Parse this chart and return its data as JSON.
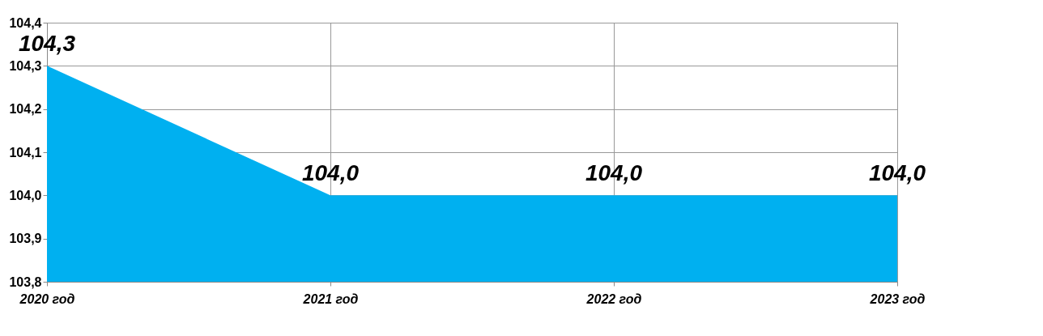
{
  "chart_data": {
    "type": "area",
    "categories": [
      "2020 год",
      "2021 год",
      "2022 год",
      "2023 год"
    ],
    "series": [
      {
        "color": "#00b0f0",
        "values": [
          104.3,
          104.0,
          104.0,
          104.0
        ],
        "value_labels": [
          "104,3",
          "104,0",
          "104,0",
          "104,0"
        ]
      }
    ],
    "ylim": [
      103.8,
      104.4
    ],
    "yticks": [
      {
        "value": 103.8,
        "label": "103,8"
      },
      {
        "value": 103.9,
        "label": "103,9"
      },
      {
        "value": 104.0,
        "label": "104,0"
      },
      {
        "value": 104.1,
        "label": "104,1"
      },
      {
        "value": 104.2,
        "label": "104,2"
      },
      {
        "value": 104.3,
        "label": "104,3"
      },
      {
        "value": 104.4,
        "label": "104,4"
      }
    ],
    "grid": true
  }
}
